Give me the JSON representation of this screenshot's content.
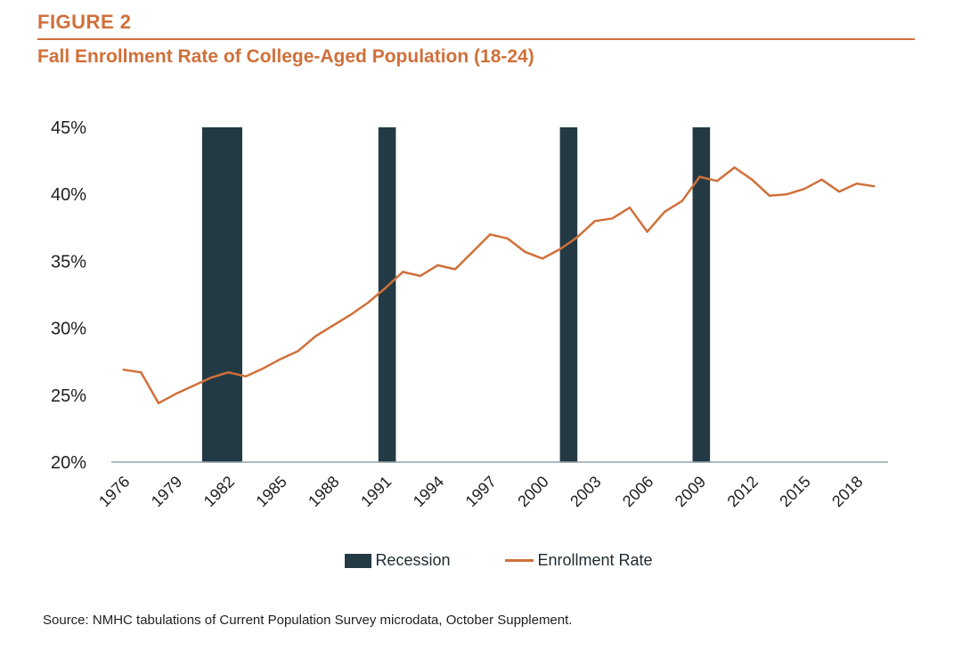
{
  "header": {
    "figure_label": "FIGURE 2",
    "title": "Fall Enrollment Rate of College-Aged Population (18-24)"
  },
  "source": "Source: NMHC tabulations of Current Population Survey microdata, October Supplement.",
  "colors": {
    "accent": "#d0703a",
    "recession": "#233a45",
    "axis": "#8fa1a8",
    "text": "#1f1f1f"
  },
  "legend": {
    "recession_label": "Recession",
    "enrollment_label": "Enrollment Rate"
  },
  "chart_data": {
    "type": "line",
    "title": "Fall Enrollment Rate of College-Aged Population (18-24)",
    "xlabel": "",
    "ylabel": "",
    "ylim": [
      0.2,
      0.45
    ],
    "yticks": [
      0.2,
      0.25,
      0.3,
      0.35,
      0.4,
      0.45
    ],
    "ytick_labels": [
      "20%",
      "25%",
      "30%",
      "35%",
      "40%",
      "45%"
    ],
    "xticks": [
      1976,
      1979,
      1982,
      1985,
      1988,
      1991,
      1994,
      1997,
      2000,
      2003,
      2006,
      2009,
      2012,
      2015,
      2018
    ],
    "xtick_labels": [
      "1976",
      "1979",
      "1982",
      "1985",
      "1988",
      "1991",
      "1994",
      "1997",
      "2000",
      "2003",
      "2006",
      "2009",
      "2012",
      "2015",
      "2018"
    ],
    "grid": false,
    "legend_position": "bottom",
    "series": [
      {
        "name": "Enrollment Rate",
        "x": [
          1976,
          1977,
          1978,
          1979,
          1980,
          1981,
          1982,
          1983,
          1984,
          1985,
          1986,
          1987,
          1988,
          1989,
          1990,
          1991,
          1992,
          1993,
          1994,
          1995,
          1996,
          1997,
          1998,
          1999,
          2000,
          2001,
          2002,
          2003,
          2004,
          2005,
          2006,
          2007,
          2008,
          2009,
          2010,
          2011,
          2012,
          2013,
          2014,
          2015,
          2016,
          2017,
          2018,
          2019
        ],
        "y": [
          0.269,
          0.267,
          0.244,
          0.251,
          0.257,
          0.263,
          0.267,
          0.264,
          0.27,
          0.277,
          0.283,
          0.294,
          0.302,
          0.31,
          0.319,
          0.33,
          0.342,
          0.339,
          0.347,
          0.344,
          0.357,
          0.37,
          0.367,
          0.357,
          0.352,
          0.359,
          0.368,
          0.38,
          0.382,
          0.39,
          0.372,
          0.387,
          0.395,
          0.413,
          0.41,
          0.42,
          0.411,
          0.399,
          0.4,
          0.404,
          0.411,
          0.402,
          0.408,
          0.406
        ]
      }
    ],
    "recessions": [
      {
        "name": "Recession",
        "start": 1980.5,
        "end": 1982.8
      },
      {
        "name": "Recession",
        "start": 1990.6,
        "end": 1991.6
      },
      {
        "name": "Recession",
        "start": 2001.0,
        "end": 2002.0
      },
      {
        "name": "Recession",
        "start": 2008.6,
        "end": 2009.6
      }
    ]
  }
}
